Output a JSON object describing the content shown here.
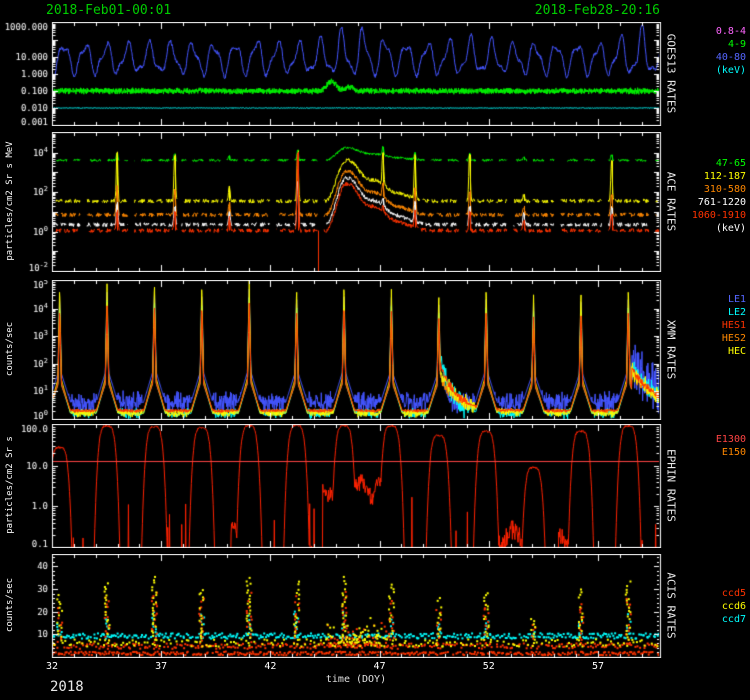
{
  "header": {
    "start_date": "2018-Feb01-00:01",
    "end_date": "2018-Feb28-20:16"
  },
  "x_axis": {
    "min": 32,
    "max": 59.84,
    "major_ticks": [
      32,
      37,
      42,
      47,
      52,
      57
    ],
    "major_tick_labels": [
      "32",
      "37",
      "42",
      "47",
      "52",
      "57"
    ],
    "minor_step": 1,
    "label": "time (DOY)",
    "year": "2018"
  },
  "chart_data": [
    {
      "name": "GOES13 RATES",
      "type": "line",
      "y_axis": {
        "scale": "log",
        "min": 0.001,
        "max": 1000,
        "axis_label": "",
        "ticks": [
          {
            "v": 1000,
            "label": "1000.000"
          },
          {
            "v": 10,
            "label": "10.000"
          },
          {
            "v": 1,
            "label": "1.000"
          },
          {
            "v": 0.1,
            "label": "0.100"
          },
          {
            "v": 0.01,
            "label": "0.010"
          },
          {
            "v": 0.001,
            "label": "0.001"
          }
        ]
      },
      "legend": [
        {
          "label": "0.8-4",
          "color": "#ff66ff"
        },
        {
          "label": "4-9",
          "color": "#00ff00"
        },
        {
          "label": "40-80",
          "color": "#5566ff"
        },
        {
          "label": "(keV)",
          "color": "#00ffff"
        }
      ],
      "series": [
        {
          "name": "4-9",
          "color": "#00ee00",
          "model": "band",
          "base": -1.0,
          "noise": 0.2,
          "step": 0.008,
          "bumps": [
            {
              "t": 44.8,
              "amp": 0.55,
              "w": 0.3
            },
            {
              "t": 45.6,
              "amp": 0.25,
              "w": 0.25
            }
          ]
        },
        {
          "name": "0.8-4",
          "color": "#00ffff",
          "model": "band",
          "base": -2.0,
          "noise": 0.03,
          "step": 0.02,
          "bumps": []
        },
        {
          "name": "40-80",
          "color": "#4455ff",
          "model": "osc",
          "base": 0.9,
          "amp": 1.0,
          "period": 0.98,
          "phase": 32.3,
          "noise": 0.1,
          "bumps": [
            {
              "t": 45.9,
              "amp": 1.0,
              "w": 1.4
            },
            {
              "t": 58.8,
              "amp": 1.0,
              "w": 0.8
            },
            {
              "t": 51.0,
              "amp": 0.35,
              "w": 1.2
            },
            {
              "t": 41.5,
              "amp": 0.3,
              "w": 0.8
            }
          ]
        }
      ]
    },
    {
      "name": "ACE RATES",
      "type": "line",
      "y_axis": {
        "scale": "log",
        "min": 0.01,
        "max": 100000,
        "axis_label": "particles/cm2 Sr s MeV",
        "ticks": [
          {
            "v": 10000,
            "label": "10^4"
          },
          {
            "v": 100,
            "label": "10^2"
          },
          {
            "v": 1,
            "label": "10^0"
          },
          {
            "v": 0.01,
            "label": "10^-2"
          }
        ]
      },
      "legend": [
        {
          "label": "47-65",
          "color": "#00ff00"
        },
        {
          "label": "112-187",
          "color": "#ffff00"
        },
        {
          "label": "310-580",
          "color": "#ff8800"
        },
        {
          "label": "761-1220",
          "color": "#ffffff"
        },
        {
          "label": "1060-1910",
          "color": "#ff3300"
        },
        {
          "label": "(keV)",
          "color": "#ffffff"
        }
      ],
      "event": {
        "rise": 44.55,
        "peak_t": 45.45,
        "end": 49.4
      },
      "spike_times": [
        34.98,
        37.62,
        40.12,
        43.25,
        47.15,
        48.62,
        51.12,
        53.6,
        57.62
      ],
      "series": [
        {
          "name": "47-65",
          "color": "#00ee00",
          "model": "ace",
          "base": 3.62,
          "event_peak": 0.62,
          "noise": 0.06,
          "seg": 0.5,
          "gap": 0.28,
          "spike_peaks": [
            4.0,
            3.95,
            3.85,
            4.15,
            4.3,
            4.0,
            3.95,
            3.8,
            3.9
          ]
        },
        {
          "name": "112-187",
          "color": "#ffff00",
          "model": "ace",
          "base": 1.55,
          "event_peak": 2.05,
          "noise": 0.1,
          "seg": 0.3,
          "gap": 0.12,
          "spike_peaks": [
            4.05,
            3.9,
            2.3,
            4.1,
            4.0,
            3.85,
            3.9,
            1.9,
            3.6
          ]
        },
        {
          "name": "310-580",
          "color": "#ff8800",
          "model": "ace",
          "base": 0.85,
          "event_peak": 2.2,
          "noise": 0.1,
          "seg": 0.28,
          "gap": 0.12,
          "spike_peaks": [
            2.3,
            2.1,
            1.5,
            3.2,
            2.5,
            2.2,
            2.1,
            1.3,
            1.9
          ]
        },
        {
          "name": "761-1220",
          "color": "#ffffff",
          "model": "ace",
          "base": 0.35,
          "event_peak": 2.35,
          "noise": 0.1,
          "seg": 0.26,
          "gap": 0.12,
          "spike_peaks": [
            1.5,
            1.3,
            1.0,
            2.7,
            1.7,
            1.5,
            1.3,
            0.9,
            1.2
          ]
        },
        {
          "name": "1060-1910",
          "color": "#ff3300",
          "model": "ace",
          "base": 0.05,
          "event_peak": 2.35,
          "noise": 0.1,
          "seg": 0.26,
          "gap": 0.12,
          "spike_peaks": [
            1.1,
            1.0,
            0.7,
            4.05,
            1.3,
            1.1,
            1.0,
            0.6,
            0.9
          ],
          "down_spike": 44.2
        }
      ]
    },
    {
      "name": "XMM RATES",
      "type": "line",
      "y_axis": {
        "scale": "log",
        "min": 1,
        "max": 100000,
        "axis_label": "counts/sec",
        "ticks": [
          {
            "v": 100000,
            "label": "10^5"
          },
          {
            "v": 10000,
            "label": "10^4"
          },
          {
            "v": 1000,
            "label": "10^3"
          },
          {
            "v": 100,
            "label": "10^2"
          },
          {
            "v": 10,
            "label": "10^1"
          },
          {
            "v": 1,
            "label": "10^0"
          }
        ]
      },
      "legend": [
        {
          "label": "LE1",
          "color": "#5566ff"
        },
        {
          "label": "LE2",
          "color": "#00ffff"
        },
        {
          "label": "HES1",
          "color": "#ff3300"
        },
        {
          "label": "HES2",
          "color": "#ff8800"
        },
        {
          "label": "HEC",
          "color": "#ffff00"
        }
      ],
      "spike_times": [
        32.35,
        34.52,
        36.69,
        38.86,
        41.03,
        43.2,
        45.37,
        47.54,
        49.71,
        51.88,
        54.05,
        56.22,
        58.39
      ],
      "series": [
        {
          "name": "LE1",
          "color": "#4455ff",
          "model": "spiky",
          "base": 0.6,
          "noise": 0.45,
          "peaks": [
            4.5,
            4.6,
            4.7,
            4.6,
            4.7,
            4.5,
            4.6,
            4.4,
            4.3,
            4.5,
            4.2,
            4.4,
            4.5
          ],
          "tails": [
            {
              "t0": 58.55,
              "amp": 1.3,
              "tau": 1.2
            }
          ]
        },
        {
          "name": "LE2",
          "color": "#00ffff",
          "model": "spiky",
          "base": 0.2,
          "noise": 0.2,
          "peaks": [
            4.2,
            4.3,
            4.4,
            4.3,
            4.4,
            4.2,
            4.3,
            4.1,
            4.0,
            4.2,
            3.9,
            4.1,
            4.2
          ],
          "tails": [
            {
              "t0": 49.78,
              "amp": 1.9,
              "tau": 0.55
            },
            {
              "t0": 58.55,
              "amp": 1.7,
              "tau": 1.2
            }
          ]
        },
        {
          "name": "HES2",
          "color": "#ff8800",
          "model": "spiky",
          "base": 0.28,
          "noise": 0.1,
          "peaks": [
            3.8,
            3.9,
            4.0,
            3.9,
            4.0,
            3.8,
            3.9,
            3.7,
            3.6,
            3.8,
            3.5,
            3.7,
            3.8
          ],
          "tails": [
            {
              "t0": 49.78,
              "amp": 1.2,
              "tau": 0.8
            },
            {
              "t0": 58.55,
              "amp": 1.4,
              "tau": 1.2
            }
          ]
        },
        {
          "name": "HEC",
          "color": "#ffff00",
          "model": "spiky",
          "base": 0.2,
          "noise": 0.15,
          "peaks": [
            4.8,
            4.9,
            5.0,
            4.9,
            5.0,
            4.8,
            4.9,
            4.7,
            4.6,
            4.8,
            4.5,
            4.7,
            4.8
          ],
          "tails": [
            {
              "t0": 49.78,
              "amp": 1.5,
              "tau": 0.9
            },
            {
              "t0": 58.55,
              "amp": 1.6,
              "tau": 1.3
            }
          ]
        },
        {
          "name": "HES1",
          "color": "#ff3300",
          "model": "spiky",
          "base": 0.3,
          "noise": 0.07,
          "peaks": [
            4.0,
            4.1,
            4.2,
            4.1,
            4.2,
            4.0,
            4.1,
            3.9,
            3.8,
            4.0,
            3.7,
            3.9,
            4.0
          ],
          "tails": [
            {
              "t0": 49.78,
              "amp": 1.7,
              "tau": 0.7
            },
            {
              "t0": 58.55,
              "amp": 1.5,
              "tau": 1.2
            }
          ]
        }
      ]
    },
    {
      "name": "EPHIN RATES",
      "type": "line",
      "y_axis": {
        "scale": "log",
        "min": 0.1,
        "max": 100,
        "axis_label": "particles/cm2 Sr s",
        "ticks": [
          {
            "v": 100,
            "label": "100.0"
          },
          {
            "v": 10,
            "label": "10.0"
          },
          {
            "v": 1,
            "label": "1.0"
          },
          {
            "v": 0.1,
            "label": "0.1"
          }
        ]
      },
      "legend": [
        {
          "label": "E1300",
          "color": "#ff4444"
        },
        {
          "label": "E150",
          "color": "#ff8800"
        }
      ],
      "hump_times": [
        32.35,
        34.52,
        36.69,
        38.86,
        41.03,
        43.2,
        45.37,
        47.54,
        49.71,
        51.88,
        54.05,
        56.22,
        58.39
      ],
      "series": [
        {
          "name": "E150",
          "color": "#ff2200",
          "model": "humps",
          "baseline": 0.04,
          "width": 0.36,
          "peaks": [
            28,
            95,
            90,
            85,
            95,
            98,
            96,
            95,
            55,
            70,
            9,
            70,
            95
          ],
          "floors": [
            {
              "range": [
                44.4,
                47.3
              ],
              "level": 3.0
            },
            {
              "range": [
                40.2,
                41.6
              ],
              "level": 0.25
            },
            {
              "range": [
                52.4,
                53.5
              ],
              "level": 0.22
            },
            {
              "range": [
                55.2,
                55.9
              ],
              "level": 0.18
            }
          ]
        },
        {
          "name": "E1300",
          "color": "#ff4444",
          "model": "hline",
          "value": 13
        }
      ]
    },
    {
      "name": "ACIS RATES",
      "type": "scatter",
      "y_axis": {
        "scale": "linear",
        "min": 0,
        "max": 45,
        "axis_label": "counts/sec",
        "ticks": [
          {
            "v": 40,
            "label": "40"
          },
          {
            "v": 30,
            "label": "30"
          },
          {
            "v": 20,
            "label": "20"
          },
          {
            "v": 10,
            "label": "10"
          }
        ]
      },
      "legend": [
        {
          "label": "ccd5",
          "color": "#ff3300"
        },
        {
          "label": "ccd6",
          "color": "#ffff00"
        },
        {
          "label": "ccd7",
          "color": "#00ffff"
        }
      ],
      "cluster_times": [
        32.35,
        34.52,
        36.69,
        38.86,
        41.03,
        43.2,
        45.37,
        47.54,
        49.71,
        51.88,
        54.05,
        56.22,
        58.39
      ],
      "series": [
        {
          "name": "ccd7",
          "color": "#00ffff",
          "model": "scatter",
          "bands": [
            {
              "level": 9.3,
              "jitter": 1.2,
              "step": 0.06
            }
          ],
          "cluster_peaks": [
            16,
            19,
            21,
            19,
            21,
            20,
            21,
            18,
            15,
            17,
            12,
            17,
            19
          ]
        },
        {
          "name": "ccd5",
          "color": "#ff3300",
          "model": "scatter",
          "bands": [
            {
              "level": 4.8,
              "jitter": 1.2,
              "step": 0.09
            },
            {
              "level": 1.6,
              "jitter": 0.8,
              "step": 0.07
            }
          ],
          "cluster_peaks": [
            22,
            26,
            29,
            26,
            29,
            28,
            29,
            25,
            21,
            24,
            15,
            24,
            27
          ],
          "extra": [
            {
              "range": [
                44.6,
                47.4
              ],
              "max": 16,
              "n": 60
            }
          ]
        },
        {
          "name": "ccd6",
          "color": "#ffff00",
          "model": "scatter",
          "bands": [
            {
              "level": 6.2,
              "jitter": 1.6,
              "step": 0.13
            }
          ],
          "cluster_peaks": [
            28,
            33,
            36,
            32,
            36,
            35,
            36,
            33,
            26,
            30,
            18,
            30,
            34
          ],
          "extra": [
            {
              "range": [
                44.6,
                47.4
              ],
              "max": 18,
              "n": 60
            }
          ]
        }
      ]
    }
  ]
}
